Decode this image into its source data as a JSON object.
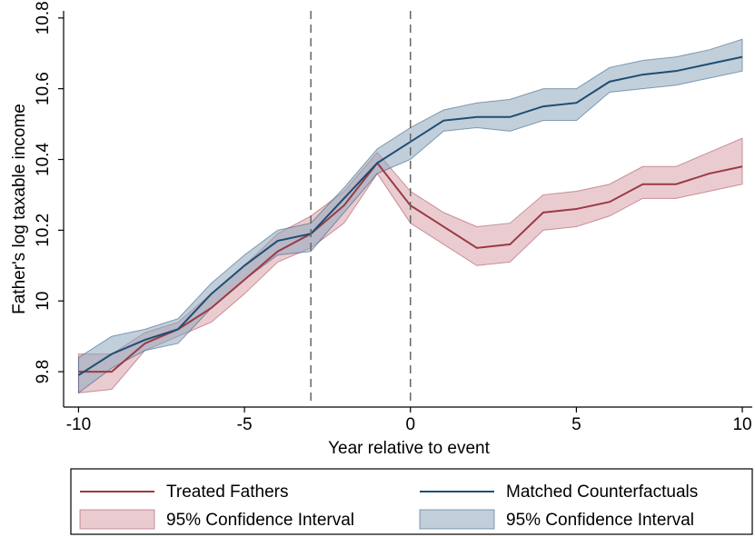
{
  "chart_data": {
    "type": "line",
    "x_label": "Year relative to event",
    "y_label": "Father's log taxable income",
    "x": [
      -10,
      -9,
      -8,
      -7,
      -6,
      -5,
      -4,
      -3,
      -2,
      -1,
      0,
      1,
      2,
      3,
      4,
      5,
      6,
      7,
      8,
      9,
      10
    ],
    "xlim": [
      -10.45,
      10.3
    ],
    "ylim": [
      9.7,
      10.82
    ],
    "xticks": [
      -10,
      -5,
      0,
      5,
      10
    ],
    "yticks": [
      9.8,
      10,
      10.2,
      10.4,
      10.6,
      10.8
    ],
    "vlines": [
      -3,
      0
    ],
    "series": [
      {
        "name": "Treated Fathers",
        "color": "#9b3a45",
        "values": [
          9.8,
          9.8,
          9.88,
          9.92,
          9.98,
          10.06,
          10.14,
          10.19,
          10.27,
          10.39,
          10.27,
          10.21,
          10.15,
          10.16,
          10.25,
          10.26,
          10.28,
          10.33,
          10.33,
          10.36,
          10.38
        ],
        "ci_name": "95% Confidence Interval",
        "ci_color": "#d9a3a9",
        "lower": [
          9.74,
          9.75,
          9.86,
          9.9,
          9.94,
          10.02,
          10.11,
          10.15,
          10.22,
          10.36,
          10.22,
          10.16,
          10.1,
          10.11,
          10.2,
          10.21,
          10.24,
          10.29,
          10.29,
          10.31,
          10.33
        ],
        "upper": [
          9.85,
          9.85,
          9.91,
          9.94,
          10.02,
          10.1,
          10.19,
          10.24,
          10.31,
          10.42,
          10.31,
          10.25,
          10.21,
          10.22,
          10.3,
          10.31,
          10.33,
          10.38,
          10.38,
          10.42,
          10.46
        ]
      },
      {
        "name": "Matched Counterfactuals",
        "color": "#1f4d73",
        "values": [
          9.79,
          9.85,
          9.89,
          9.92,
          10.02,
          10.1,
          10.17,
          10.19,
          10.29,
          10.39,
          10.45,
          10.51,
          10.52,
          10.52,
          10.55,
          10.56,
          10.62,
          10.64,
          10.65,
          10.67,
          10.69
        ],
        "ci_name": "95% Confidence Interval",
        "ci_color": "#8ea7bd",
        "lower": [
          9.74,
          9.81,
          9.86,
          9.88,
          9.98,
          10.06,
          10.13,
          10.14,
          10.25,
          10.36,
          10.4,
          10.48,
          10.49,
          10.48,
          10.51,
          10.51,
          10.59,
          10.6,
          10.61,
          10.63,
          10.65
        ],
        "upper": [
          9.84,
          9.9,
          9.92,
          9.95,
          10.05,
          10.13,
          10.2,
          10.22,
          10.32,
          10.43,
          10.49,
          10.54,
          10.56,
          10.57,
          10.6,
          10.6,
          10.66,
          10.68,
          10.69,
          10.71,
          10.74
        ]
      }
    ]
  }
}
